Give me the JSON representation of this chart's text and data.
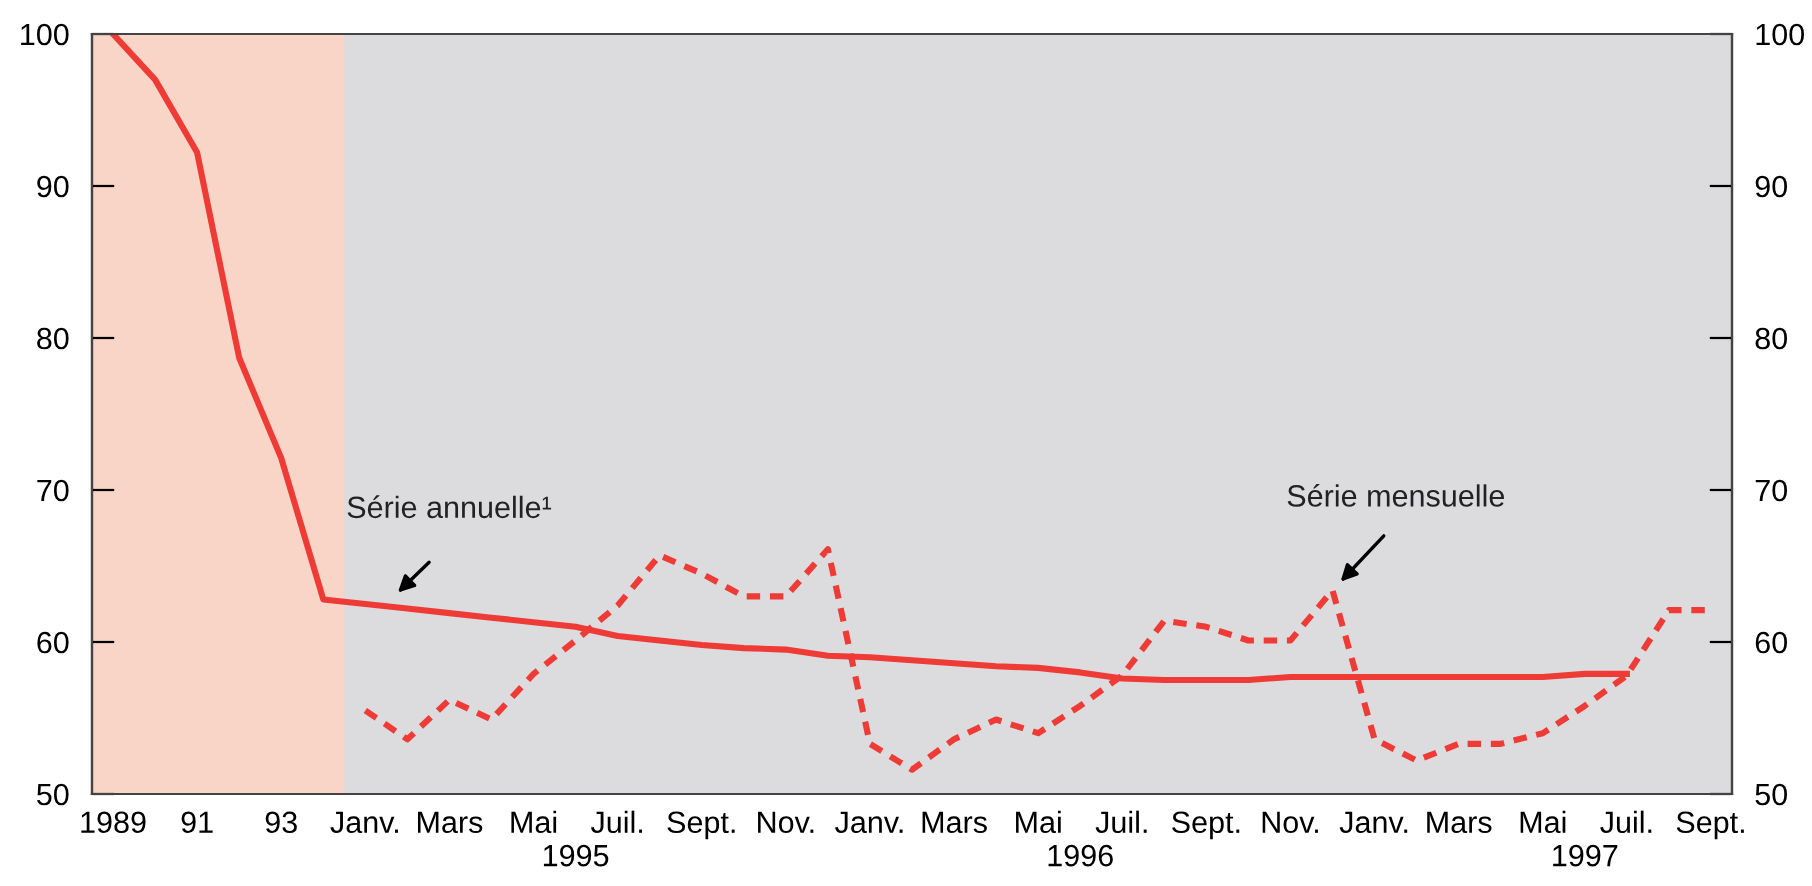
{
  "chart_data": {
    "type": "line",
    "categories": [
      "1989",
      null,
      "91",
      null,
      "93",
      null,
      "Janv.",
      null,
      "Mars",
      null,
      "Mai",
      null,
      "Juil.",
      null,
      "Sept.",
      null,
      "Nov.",
      null,
      "Janv.",
      null,
      "Mars",
      null,
      "Mai",
      null,
      "Juil.",
      null,
      "Sept.",
      null,
      "Nov.",
      null,
      "Janv.",
      null,
      "Mars",
      null,
      "Mai",
      null,
      "Juil.",
      null,
      "Sept."
    ],
    "series": [
      {
        "color": "#ee3b36",
        "line_style": "solid",
        "values": [
          100,
          97,
          92.2,
          78.7,
          72.1,
          62.8,
          62.5,
          62.2,
          61.9,
          61.6,
          61.3,
          61.0,
          60.4,
          60.1,
          59.8,
          59.6,
          59.5,
          59.1,
          59.0,
          58.8,
          58.6,
          58.4,
          58.3,
          58.0,
          57.6,
          57.5,
          57.5,
          57.5,
          57.7,
          57.7,
          57.7,
          57.7,
          57.7,
          57.7,
          57.7,
          57.9,
          57.9,
          null,
          null
        ]
      },
      {
        "color": "#ee3b36",
        "line_style": "dashed",
        "values": [
          null,
          null,
          null,
          null,
          null,
          null,
          55.5,
          53.6,
          56.2,
          54.9,
          57.9,
          60.1,
          62.4,
          65.7,
          64.5,
          63.0,
          63.0,
          66.1,
          53.3,
          51.6,
          53.6,
          54.9,
          54.0,
          55.8,
          57.8,
          61.4,
          61.0,
          60.1,
          60.1,
          63.4,
          53.6,
          52.2,
          53.3,
          53.3,
          54.0,
          55.8,
          57.8,
          62.1,
          62.1
        ]
      }
    ],
    "ylim": [
      50,
      100
    ],
    "yticks": [
      50,
      60,
      70,
      80,
      90,
      100
    ],
    "y2lim": [
      50,
      100
    ],
    "y2ticks": [
      50,
      60,
      70,
      80,
      90,
      100
    ],
    "annotations": [
      "Série annuelle¹",
      "Série mensuelle",
      "1995",
      "1996",
      "1997"
    ],
    "grid": false,
    "legend": false
  }
}
